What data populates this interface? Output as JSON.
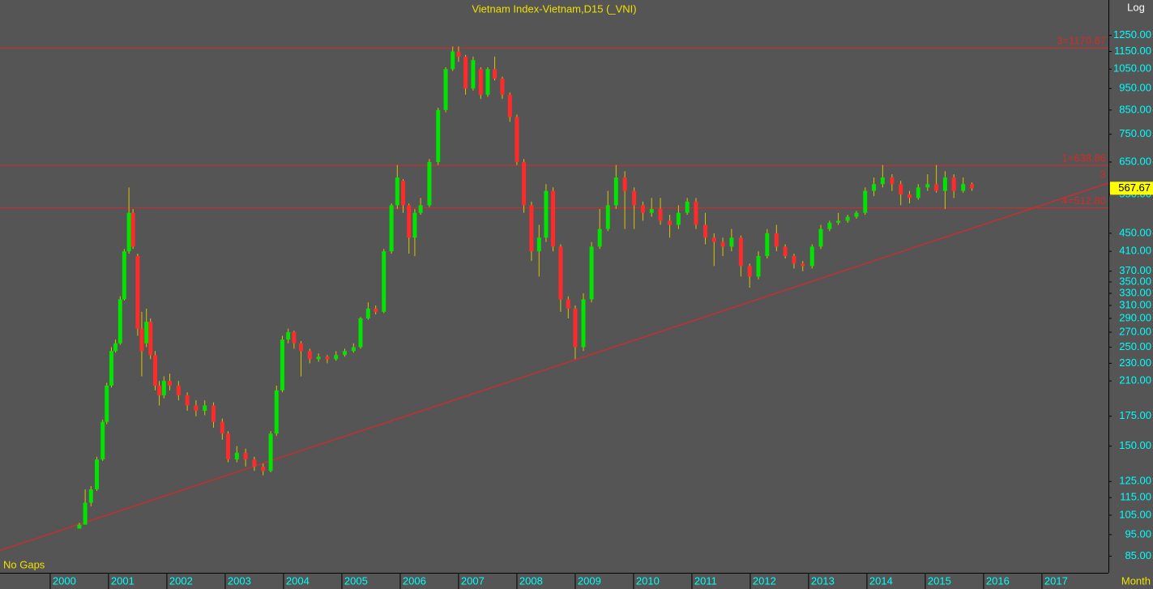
{
  "chart_data": {
    "type": "candlestick",
    "title": "Vietnam Index-Vietnam,D15 (_VNI)",
    "scale_label": "Log",
    "gap_label": "No Gaps",
    "period_label": "Month",
    "log_scale": true,
    "xlim": [
      1999.14,
      2018.14
    ],
    "xticks": [
      2000,
      2001,
      2002,
      2003,
      2004,
      2005,
      2006,
      2007,
      2008,
      2009,
      2010,
      2011,
      2012,
      2013,
      2014,
      2015,
      2016,
      2017
    ],
    "ylim": [
      78,
      1500
    ],
    "yticks": [
      {
        "value": 85,
        "label": "85.00"
      },
      {
        "value": 95,
        "label": "95.00"
      },
      {
        "value": 105,
        "label": "105.00"
      },
      {
        "value": 115,
        "label": "115.00"
      },
      {
        "value": 125,
        "label": "125.00"
      },
      {
        "value": 150,
        "label": "150.00"
      },
      {
        "value": 175,
        "label": "175.00"
      },
      {
        "value": 210,
        "label": "210.00"
      },
      {
        "value": 230,
        "label": "230.00"
      },
      {
        "value": 250,
        "label": "250.00"
      },
      {
        "value": 270,
        "label": "270.00"
      },
      {
        "value": 290,
        "label": "290.00"
      },
      {
        "value": 310,
        "label": "310.00"
      },
      {
        "value": 330,
        "label": "330.00"
      },
      {
        "value": 350,
        "label": "350.00"
      },
      {
        "value": 370,
        "label": "370.00"
      },
      {
        "value": 410,
        "label": "410.00"
      },
      {
        "value": 450,
        "label": "450.00"
      },
      {
        "value": 550,
        "label": "550.00"
      },
      {
        "value": 650,
        "label": "650.00"
      },
      {
        "value": 750,
        "label": "750.00"
      },
      {
        "value": 850,
        "label": "850.00"
      },
      {
        "value": 950,
        "label": "950.00"
      },
      {
        "value": 1050,
        "label": "1050.00"
      },
      {
        "value": 1150,
        "label": "1150.00"
      },
      {
        "value": 1250,
        "label": "1250.00"
      }
    ],
    "up_color": "#00e400",
    "down_color": "#ff2a2a",
    "wick_color": "#d8c400",
    "x": [
      2000.5,
      2000.6,
      2000.7,
      2000.8,
      2000.9,
      2000.97,
      2001.05,
      2001.12,
      2001.2,
      2001.27,
      2001.35,
      2001.42,
      2001.5,
      2001.57,
      2001.65,
      2001.72,
      2001.8,
      2001.87,
      2001.95,
      2002.05,
      2002.2,
      2002.35,
      2002.5,
      2002.65,
      2002.8,
      2002.95,
      2003.05,
      2003.2,
      2003.35,
      2003.5,
      2003.65,
      2003.78,
      2003.88,
      2003.98,
      2004.08,
      2004.18,
      2004.3,
      2004.45,
      2004.6,
      2004.75,
      2004.9,
      2005.05,
      2005.2,
      2005.32,
      2005.45,
      2005.58,
      2005.72,
      2005.85,
      2005.95,
      2006.05,
      2006.15,
      2006.25,
      2006.35,
      2006.5,
      2006.65,
      2006.78,
      2006.9,
      2007.0,
      2007.12,
      2007.25,
      2007.38,
      2007.5,
      2007.62,
      2007.75,
      2007.88,
      2008.0,
      2008.12,
      2008.25,
      2008.38,
      2008.5,
      2008.62,
      2008.75,
      2008.88,
      2009.0,
      2009.14,
      2009.28,
      2009.42,
      2009.56,
      2009.7,
      2009.85,
      2010.01,
      2010.16,
      2010.31,
      2010.46,
      2010.62,
      2010.77,
      2010.92,
      2011.07,
      2011.23,
      2011.38,
      2011.53,
      2011.68,
      2011.84,
      2011.99,
      2012.14,
      2012.29,
      2012.45,
      2012.6,
      2012.75,
      2012.9,
      2013.06,
      2013.21,
      2013.36,
      2013.51,
      2013.67,
      2013.82,
      2013.97,
      2014.12,
      2014.27,
      2014.43,
      2014.58,
      2014.73,
      2014.88,
      2015.04,
      2015.19,
      2015.34,
      2015.49,
      2015.65,
      2015.8
    ],
    "open": [
      98,
      100,
      112,
      120,
      140,
      170,
      205,
      245,
      255,
      320,
      410,
      500,
      400,
      275,
      255,
      285,
      240,
      205,
      195,
      210,
      205,
      195,
      185,
      180,
      185,
      170,
      160,
      140,
      145,
      140,
      135,
      132,
      160,
      200,
      260,
      270,
      255,
      245,
      235,
      238,
      235,
      240,
      245,
      250,
      290,
      305,
      300,
      410,
      520,
      590,
      520,
      440,
      500,
      520,
      650,
      850,
      1050,
      1150,
      1120,
      950,
      1050,
      920,
      1050,
      1000,
      920,
      820,
      650,
      520,
      410,
      440,
      560,
      420,
      320,
      305,
      250,
      320,
      420,
      460,
      520,
      600,
      560,
      520,
      500,
      510,
      480,
      470,
      500,
      530,
      470,
      440,
      430,
      420,
      440,
      380,
      360,
      400,
      450,
      420,
      400,
      385,
      380,
      420,
      460,
      475,
      480,
      490,
      500,
      560,
      580,
      600,
      580,
      550,
      540,
      570,
      580,
      560,
      600,
      560,
      580
    ],
    "high": [
      101,
      120,
      122,
      142,
      172,
      208,
      250,
      260,
      325,
      415,
      570,
      510,
      405,
      300,
      305,
      290,
      245,
      210,
      215,
      218,
      210,
      198,
      190,
      190,
      188,
      173,
      162,
      150,
      148,
      142,
      137,
      162,
      205,
      265,
      275,
      272,
      258,
      248,
      242,
      240,
      245,
      248,
      255,
      292,
      315,
      310,
      415,
      525,
      640,
      595,
      525,
      510,
      540,
      660,
      860,
      1060,
      1180,
      1180,
      1130,
      1120,
      1060,
      1060,
      1120,
      1010,
      930,
      830,
      660,
      530,
      470,
      580,
      570,
      425,
      325,
      310,
      330,
      430,
      510,
      560,
      640,
      620,
      570,
      530,
      540,
      540,
      495,
      520,
      540,
      540,
      500,
      450,
      440,
      460,
      445,
      385,
      410,
      460,
      470,
      425,
      405,
      390,
      425,
      470,
      480,
      500,
      495,
      505,
      570,
      600,
      640,
      610,
      590,
      560,
      580,
      610,
      640,
      620,
      610,
      600,
      585
    ],
    "low": [
      98,
      100,
      110,
      119,
      139,
      168,
      203,
      243,
      253,
      318,
      405,
      415,
      265,
      215,
      250,
      235,
      200,
      185,
      192,
      200,
      190,
      180,
      175,
      176,
      165,
      155,
      138,
      138,
      135,
      132,
      129,
      131,
      158,
      198,
      255,
      248,
      215,
      230,
      232,
      230,
      233,
      238,
      243,
      248,
      288,
      296,
      298,
      405,
      510,
      500,
      405,
      400,
      495,
      515,
      640,
      840,
      1040,
      1090,
      920,
      940,
      900,
      910,
      990,
      900,
      800,
      640,
      500,
      390,
      360,
      430,
      410,
      300,
      290,
      235,
      245,
      315,
      415,
      455,
      510,
      460,
      460,
      480,
      490,
      470,
      440,
      460,
      495,
      460,
      425,
      380,
      400,
      410,
      360,
      340,
      355,
      395,
      410,
      395,
      375,
      370,
      375,
      415,
      455,
      470,
      475,
      485,
      495,
      545,
      570,
      560,
      520,
      525,
      535,
      560,
      555,
      510,
      540,
      555,
      560
    ],
    "close": [
      100,
      112,
      120,
      140,
      170,
      205,
      245,
      255,
      320,
      410,
      500,
      420,
      275,
      245,
      285,
      240,
      205,
      195,
      210,
      205,
      195,
      185,
      180,
      185,
      170,
      160,
      140,
      145,
      140,
      135,
      132,
      160,
      200,
      260,
      270,
      255,
      245,
      235,
      238,
      235,
      240,
      245,
      250,
      290,
      305,
      300,
      410,
      520,
      600,
      520,
      440,
      500,
      520,
      650,
      850,
      1050,
      1150,
      1120,
      950,
      1100,
      920,
      1050,
      1000,
      920,
      820,
      650,
      520,
      410,
      440,
      560,
      420,
      320,
      305,
      250,
      320,
      420,
      460,
      520,
      600,
      560,
      520,
      500,
      510,
      480,
      470,
      500,
      530,
      470,
      440,
      430,
      420,
      440,
      380,
      360,
      400,
      450,
      420,
      400,
      385,
      380,
      420,
      460,
      475,
      480,
      490,
      500,
      560,
      580,
      600,
      580,
      550,
      540,
      570,
      580,
      560,
      600,
      560,
      580,
      567.67
    ],
    "levels": [
      {
        "value": 1170.67,
        "label": "3=1170.67"
      },
      {
        "value": 638.86,
        "label": "1=638.86"
      },
      {
        "value": 512.8,
        "label": "4=512.80"
      }
    ],
    "level_color": "#d42a2a",
    "trendline": {
      "x": [
        1999.14,
        2018.14
      ],
      "y": [
        87.5,
        583
      ],
      "label": "3"
    },
    "last_price": 567.67
  }
}
